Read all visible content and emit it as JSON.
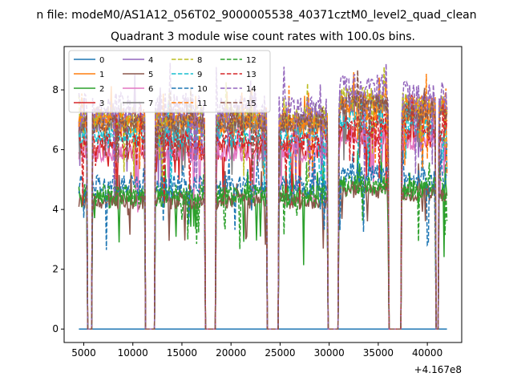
{
  "suptitle": "n file: modeM0/AS1A12_056T02_9000005538_40371cztM0_level2_quad_clean",
  "chart_data": {
    "type": "line",
    "title": "Quadrant 3 module wise count rates with 100.0s bins.",
    "xlabel": "",
    "ylabel": "",
    "x_offset_label": "+4.167e8",
    "xlim": [
      3000,
      43500
    ],
    "ylim": [
      -0.45,
      9.45
    ],
    "xticks": [
      5000,
      10000,
      15000,
      20000,
      25000,
      30000,
      35000,
      40000
    ],
    "xtick_labels": [
      "5000",
      "10000",
      "15000",
      "20000",
      "25000",
      "30000",
      "35000",
      "40000"
    ],
    "yticks": [
      0,
      2,
      4,
      6,
      8
    ],
    "ytick_labels": [
      "0",
      "2",
      "4",
      "6",
      "8"
    ],
    "x_start": 4500,
    "x_end": 42000,
    "x_step": 100,
    "gaps": [
      [
        5300,
        5900
      ],
      [
        11200,
        12300
      ],
      [
        17300,
        18500
      ],
      [
        23600,
        24900
      ],
      [
        29800,
        31000
      ],
      [
        36000,
        37400
      ],
      [
        40800,
        41200
      ]
    ],
    "legend": {
      "position": "upper-left",
      "columns": 4
    },
    "series": [
      {
        "name": "0",
        "color": "#1f77b4",
        "style": "solid",
        "level": 0.0,
        "amp": 0.0
      },
      {
        "name": "1",
        "color": "#ff7f0e",
        "style": "solid",
        "level": 6.8,
        "amp": 0.4
      },
      {
        "name": "2",
        "color": "#2ca02c",
        "style": "solid",
        "level": 4.4,
        "amp": 0.35
      },
      {
        "name": "3",
        "color": "#d62728",
        "style": "solid",
        "level": 6.0,
        "amp": 0.35
      },
      {
        "name": "4",
        "color": "#9467bd",
        "style": "solid",
        "level": 7.0,
        "amp": 0.45
      },
      {
        "name": "5",
        "color": "#8c564b",
        "style": "solid",
        "level": 4.3,
        "amp": 0.3
      },
      {
        "name": "6",
        "color": "#e377c2",
        "style": "solid",
        "level": 5.9,
        "amp": 0.3
      },
      {
        "name": "7",
        "color": "#7f7f7f",
        "style": "solid",
        "level": 6.9,
        "amp": 0.3
      },
      {
        "name": "8",
        "color": "#bcbd22",
        "style": "dashed",
        "level": 7.1,
        "amp": 0.4
      },
      {
        "name": "9",
        "color": "#17becf",
        "style": "dashed",
        "level": 6.4,
        "amp": 0.35
      },
      {
        "name": "10",
        "color": "#1f77b4",
        "style": "dashed",
        "level": 4.8,
        "amp": 0.35
      },
      {
        "name": "11",
        "color": "#ff7f0e",
        "style": "dashed",
        "level": 7.0,
        "amp": 0.4
      },
      {
        "name": "12",
        "color": "#2ca02c",
        "style": "dashed",
        "level": 4.5,
        "amp": 0.35
      },
      {
        "name": "13",
        "color": "#d62728",
        "style": "dashed",
        "level": 6.3,
        "amp": 0.35
      },
      {
        "name": "14",
        "color": "#9467bd",
        "style": "dashed",
        "level": 7.4,
        "amp": 0.5
      },
      {
        "name": "15",
        "color": "#8c564b",
        "style": "dashed",
        "level": 6.9,
        "amp": 0.35
      }
    ]
  }
}
